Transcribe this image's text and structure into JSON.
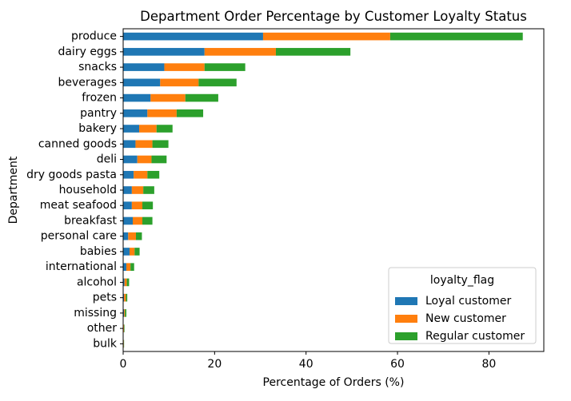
{
  "chart_data": {
    "type": "bar",
    "orientation": "horizontal",
    "stacked": true,
    "title": "Department Order Percentage by Customer Loyalty Status",
    "xlabel": "Percentage of Orders (%)",
    "ylabel": "Department",
    "xlim": [
      0,
      92
    ],
    "xticks": [
      0,
      20,
      40,
      60,
      80
    ],
    "grid": false,
    "legend": {
      "title": "loyalty_flag",
      "position": "lower-right"
    },
    "categories": [
      "produce",
      "dairy eggs",
      "snacks",
      "beverages",
      "frozen",
      "pantry",
      "bakery",
      "canned goods",
      "deli",
      "dry goods pasta",
      "household",
      "meat seafood",
      "breakfast",
      "personal care",
      "babies",
      "international",
      "alcohol",
      "pets",
      "missing",
      "other",
      "bulk"
    ],
    "series": [
      {
        "name": "Loyal customer",
        "color": "#1f77b4",
        "values": [
          30.6,
          17.8,
          9.0,
          8.1,
          6.0,
          5.3,
          3.5,
          2.7,
          3.1,
          2.3,
          1.9,
          1.9,
          2.1,
          1.1,
          1.4,
          0.7,
          0.3,
          0.2,
          0.2,
          0.1,
          0.1
        ]
      },
      {
        "name": "New customer",
        "color": "#ff7f0e",
        "values": [
          27.8,
          15.6,
          8.8,
          8.4,
          7.6,
          6.4,
          3.8,
          3.7,
          3.1,
          3.0,
          2.5,
          2.3,
          2.1,
          1.7,
          1.1,
          0.9,
          0.5,
          0.4,
          0.2,
          0.1,
          0.05
        ]
      },
      {
        "name": "Regular customer",
        "color": "#2ca02c",
        "values": [
          29.0,
          16.3,
          8.9,
          8.3,
          7.2,
          5.8,
          3.5,
          3.5,
          3.3,
          2.6,
          2.4,
          2.3,
          2.2,
          1.3,
          1.1,
          0.8,
          0.5,
          0.3,
          0.3,
          0.1,
          0.05
        ]
      }
    ]
  }
}
